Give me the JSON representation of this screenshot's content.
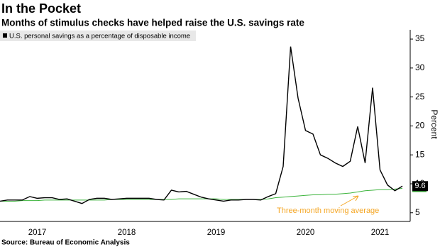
{
  "chart_data": {
    "type": "line",
    "title": "In the Pocket",
    "subtitle": "Months of stimulus checks have helped raise the U.S. savings rate",
    "y_label": "Percent",
    "source": "Source: Bureau of Economic Analysis",
    "annotation": "Three-month moving average",
    "annotation_color": "#f5a623",
    "legend": "top-left",
    "grid": false,
    "categories": [
      null,
      null,
      null,
      null,
      null,
      "2017",
      null,
      null,
      null,
      null,
      null,
      null,
      null,
      null,
      null,
      null,
      null,
      "2018",
      null,
      null,
      null,
      null,
      null,
      null,
      null,
      null,
      null,
      null,
      null,
      "2019",
      null,
      null,
      null,
      null,
      null,
      null,
      null,
      null,
      null,
      null,
      null,
      "2020",
      null,
      null,
      null,
      null,
      null,
      null,
      null,
      null,
      null,
      "2021",
      null,
      null,
      null
    ],
    "series": [
      {
        "name": "U.S. personal savings as a percentage of disposable income",
        "color": "#000000",
        "values": [
          7.0,
          7.2,
          7.2,
          7.2,
          7.8,
          7.5,
          7.6,
          7.6,
          7.3,
          7.4,
          7.0,
          6.6,
          7.3,
          7.5,
          7.5,
          7.3,
          7.4,
          7.5,
          7.5,
          7.5,
          7.5,
          7.3,
          7.2,
          8.9,
          8.6,
          8.7,
          8.2,
          7.7,
          7.4,
          7.2,
          7.0,
          7.2,
          7.2,
          7.3,
          7.3,
          7.2,
          7.8,
          8.3,
          13.0,
          33.7,
          24.8,
          19.2,
          18.6,
          15.0,
          14.4,
          13.6,
          13.0,
          13.9,
          19.9,
          13.6,
          26.6,
          12.4,
          9.8,
          8.8,
          9.6
        ]
      },
      {
        "color": "#3cb43c",
        "values": [
          7.0,
          7.0,
          7.0,
          7.1,
          7.1,
          7.1,
          7.2,
          7.2,
          7.2,
          7.2,
          7.2,
          7.2,
          7.2,
          7.2,
          7.2,
          7.3,
          7.3,
          7.3,
          7.3,
          7.3,
          7.3,
          7.3,
          7.3,
          7.3,
          7.4,
          7.4,
          7.4,
          7.4,
          7.4,
          7.4,
          7.3,
          7.3,
          7.3,
          7.3,
          7.3,
          7.3,
          7.4,
          7.6,
          7.7,
          7.8,
          7.9,
          8.0,
          8.1,
          8.1,
          8.2,
          8.2,
          8.3,
          8.4,
          8.6,
          8.8,
          8.9,
          9.0,
          9.0,
          9.1,
          9.2
        ]
      }
    ],
    "ylim": [
      3.5,
      36.6
    ],
    "yticks": [
      5,
      10,
      15,
      20,
      25,
      30,
      35
    ]
  }
}
